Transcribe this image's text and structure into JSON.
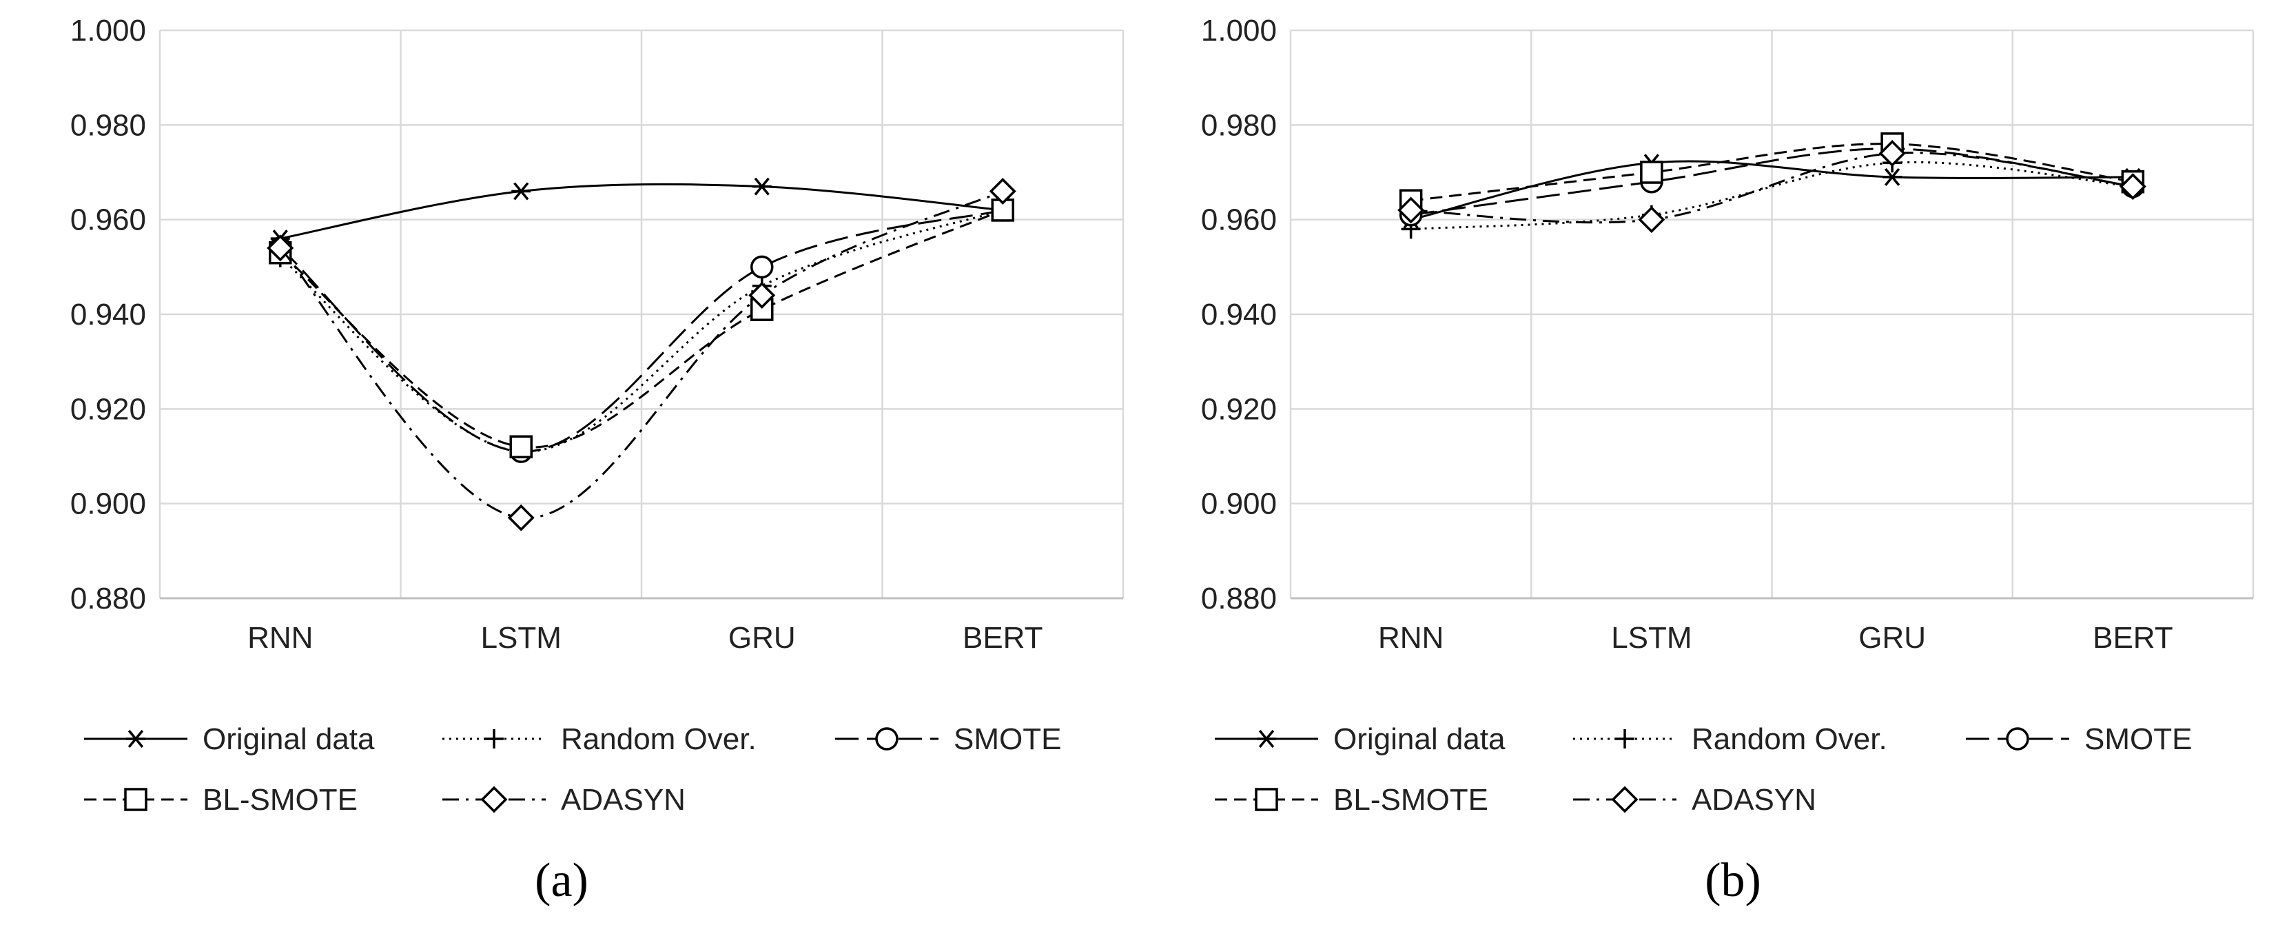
{
  "chart_data": [
    {
      "type": "line",
      "panel_label": "(a)",
      "categories": [
        "RNN",
        "LSTM",
        "GRU",
        "BERT"
      ],
      "ylim": [
        0.88,
        1.0
      ],
      "yticks": [
        "0.880",
        "0.900",
        "0.920",
        "0.940",
        "0.960",
        "0.980",
        "1.000"
      ],
      "ytick_values": [
        0.88,
        0.9,
        0.92,
        0.94,
        0.96,
        0.98,
        1.0
      ],
      "grid": true,
      "legend_position": "bottom",
      "series": [
        {
          "name": "Original data",
          "values": [
            0.956,
            0.966,
            0.967,
            0.962
          ],
          "dash": "solid",
          "marker": "asterisk"
        },
        {
          "name": "Random Over.",
          "values": [
            0.952,
            0.911,
            0.946,
            0.962
          ],
          "dash": "dot",
          "marker": "plus"
        },
        {
          "name": "SMOTE",
          "values": [
            0.954,
            0.911,
            0.95,
            0.962
          ],
          "dash": "longdash",
          "marker": "circle"
        },
        {
          "name": "BL-SMOTE",
          "values": [
            0.953,
            0.912,
            0.941,
            0.962
          ],
          "dash": "dash",
          "marker": "square"
        },
        {
          "name": "ADASYN",
          "values": [
            0.954,
            0.897,
            0.944,
            0.966
          ],
          "dash": "dashdot",
          "marker": "diamond"
        }
      ]
    },
    {
      "type": "line",
      "panel_label": "(b)",
      "categories": [
        "RNN",
        "LSTM",
        "GRU",
        "BERT"
      ],
      "ylim": [
        0.88,
        1.0
      ],
      "yticks": [
        "0.880",
        "0.900",
        "0.920",
        "0.940",
        "0.960",
        "0.980",
        "1.000"
      ],
      "ytick_values": [
        0.88,
        0.9,
        0.92,
        0.94,
        0.96,
        0.98,
        1.0
      ],
      "grid": true,
      "legend_position": "bottom",
      "series": [
        {
          "name": "Original data",
          "values": [
            0.96,
            0.972,
            0.969,
            0.969
          ],
          "dash": "solid",
          "marker": "asterisk"
        },
        {
          "name": "Random Over.",
          "values": [
            0.958,
            0.961,
            0.972,
            0.967
          ],
          "dash": "dot",
          "marker": "plus"
        },
        {
          "name": "SMOTE",
          "values": [
            0.961,
            0.968,
            0.975,
            0.967
          ],
          "dash": "longdash",
          "marker": "circle"
        },
        {
          "name": "BL-SMOTE",
          "values": [
            0.964,
            0.97,
            0.976,
            0.968
          ],
          "dash": "dash",
          "marker": "square"
        },
        {
          "name": "ADASYN",
          "values": [
            0.962,
            0.96,
            0.974,
            0.967
          ],
          "dash": "dashdot",
          "marker": "diamond"
        }
      ]
    }
  ]
}
